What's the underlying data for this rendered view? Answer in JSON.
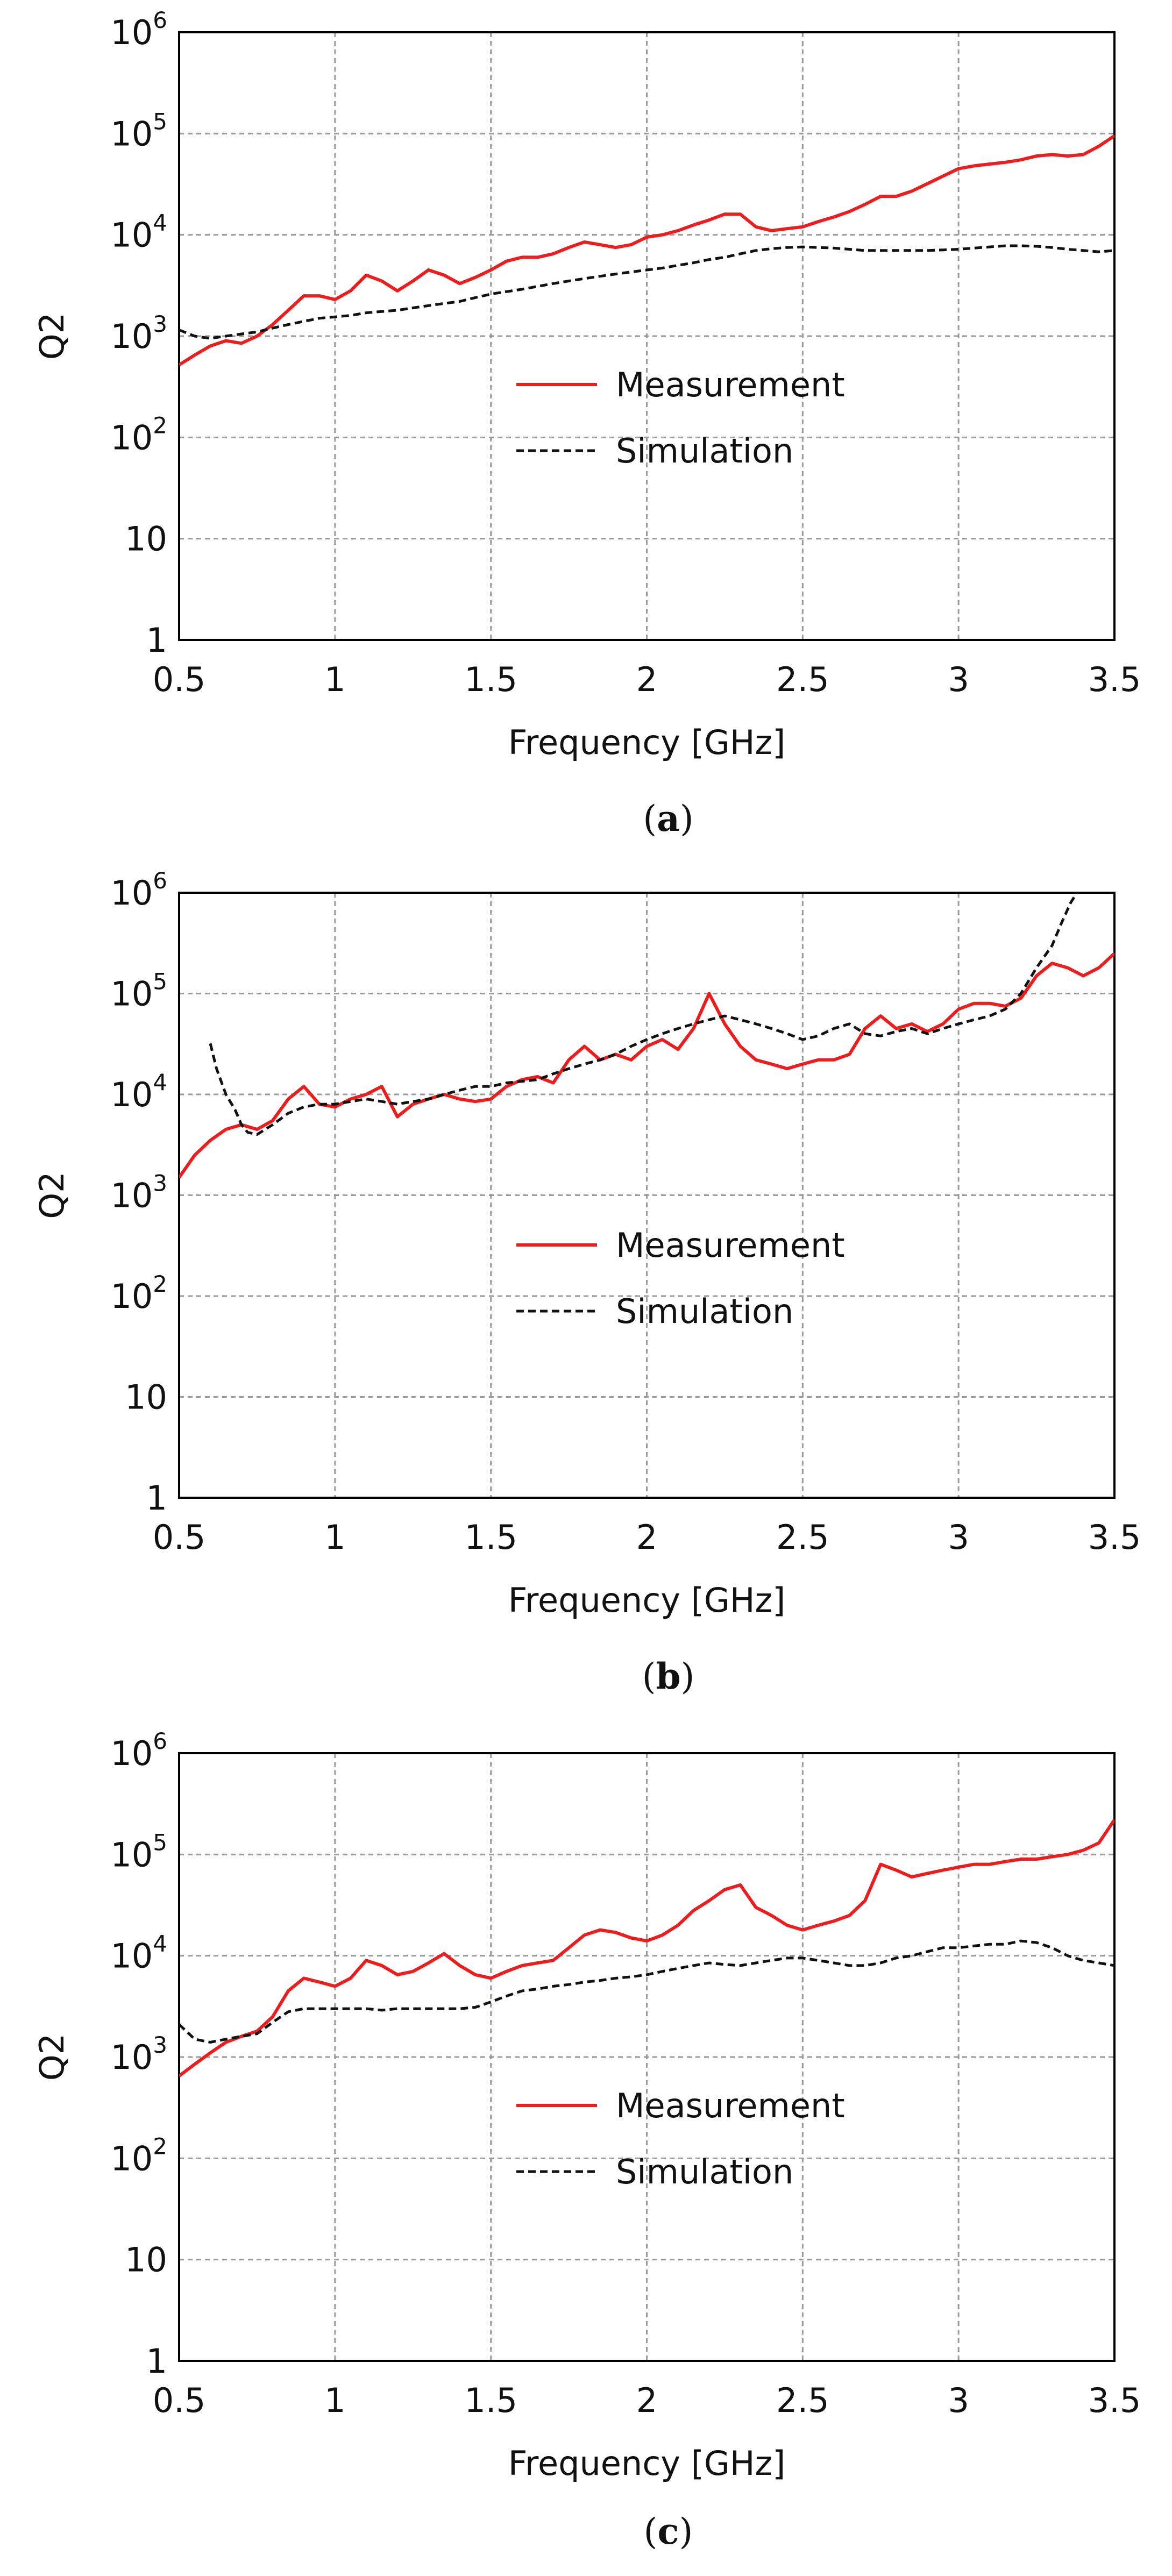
{
  "figure_title": "",
  "chart_data": [
    {
      "type": "line",
      "panel_label": "a",
      "caption_open": "(",
      "caption_close": ")",
      "xlabel": "Frequency [GHz]",
      "ylabel": "Q2",
      "xlim": [
        0.5,
        3.5
      ],
      "ylim": [
        1,
        1000000
      ],
      "yscale": "log",
      "grid": true,
      "legend_position": "center",
      "x_ticks": [
        0.5,
        1,
        1.5,
        2,
        2.5,
        3,
        3.5
      ],
      "x_tick_labels": [
        "0.5",
        "1",
        "1.5",
        "2",
        "2.5",
        "3",
        "3.5"
      ],
      "y_ticks": [
        1,
        10,
        100,
        1000,
        10000,
        100000,
        1000000
      ],
      "y_tick_labels": [
        {
          "base": "1",
          "exp": ""
        },
        {
          "base": "10",
          "exp": ""
        },
        {
          "base": "10",
          "exp": "2"
        },
        {
          "base": "10",
          "exp": "3"
        },
        {
          "base": "10",
          "exp": "4"
        },
        {
          "base": "10",
          "exp": "5"
        },
        {
          "base": "10",
          "exp": "6"
        }
      ],
      "series": [
        {
          "name": "Measurement",
          "color": "#ee1c1c",
          "dash": "solid",
          "x": [
            0.5,
            0.55,
            0.6,
            0.65,
            0.7,
            0.75,
            0.8,
            0.85,
            0.9,
            0.95,
            1.0,
            1.05,
            1.1,
            1.15,
            1.2,
            1.25,
            1.3,
            1.35,
            1.4,
            1.45,
            1.5,
            1.55,
            1.6,
            1.65,
            1.7,
            1.75,
            1.8,
            1.85,
            1.9,
            1.95,
            2.0,
            2.05,
            2.1,
            2.15,
            2.2,
            2.25,
            2.3,
            2.35,
            2.4,
            2.45,
            2.5,
            2.55,
            2.6,
            2.65,
            2.7,
            2.75,
            2.8,
            2.85,
            2.9,
            2.95,
            3.0,
            3.05,
            3.1,
            3.15,
            3.2,
            3.25,
            3.3,
            3.35,
            3.4,
            3.45,
            3.5
          ],
          "y": [
            520,
            650,
            800,
            900,
            850,
            1000,
            1300,
            1800,
            2500,
            2500,
            2300,
            2800,
            4000,
            3500,
            2800,
            3500,
            4500,
            4000,
            3300,
            3800,
            4500,
            5500,
            6000,
            6000,
            6500,
            7500,
            8500,
            8000,
            7500,
            8000,
            9500,
            10000,
            11000,
            12500,
            14000,
            16000,
            16000,
            12000,
            11000,
            11500,
            12000,
            13500,
            15000,
            17000,
            20000,
            24000,
            24000,
            27000,
            32000,
            38000,
            45000,
            48000,
            50000,
            52000,
            55000,
            60000,
            62000,
            60000,
            62000,
            75000,
            95000
          ]
        },
        {
          "name": "Simulation",
          "color": "#111111",
          "dash": "dashed",
          "x": [
            0.5,
            0.55,
            0.6,
            0.65,
            0.7,
            0.75,
            0.8,
            0.85,
            0.9,
            0.95,
            1.0,
            1.05,
            1.1,
            1.15,
            1.2,
            1.25,
            1.3,
            1.35,
            1.4,
            1.45,
            1.5,
            1.55,
            1.6,
            1.65,
            1.7,
            1.75,
            1.8,
            1.85,
            1.9,
            1.95,
            2.0,
            2.05,
            2.1,
            2.15,
            2.2,
            2.25,
            2.3,
            2.35,
            2.4,
            2.45,
            2.5,
            2.55,
            2.6,
            2.65,
            2.7,
            2.75,
            2.8,
            2.85,
            2.9,
            2.95,
            3.0,
            3.05,
            3.1,
            3.15,
            3.2,
            3.25,
            3.3,
            3.35,
            3.4,
            3.45,
            3.5
          ],
          "y": [
            1150,
            1000,
            950,
            1000,
            1050,
            1100,
            1200,
            1300,
            1400,
            1500,
            1550,
            1600,
            1700,
            1750,
            1800,
            1900,
            2000,
            2100,
            2200,
            2400,
            2600,
            2750,
            2900,
            3100,
            3300,
            3500,
            3700,
            3900,
            4100,
            4300,
            4500,
            4700,
            5000,
            5300,
            5700,
            6000,
            6500,
            7000,
            7300,
            7500,
            7600,
            7500,
            7400,
            7200,
            7000,
            7000,
            7000,
            7000,
            7000,
            7100,
            7200,
            7400,
            7600,
            7800,
            7800,
            7700,
            7500,
            7200,
            7000,
            6800,
            7000
          ]
        }
      ]
    },
    {
      "type": "line",
      "panel_label": "b",
      "caption_open": "(",
      "caption_close": ")",
      "xlabel": "Frequency [GHz]",
      "ylabel": "Q2",
      "xlim": [
        0.5,
        3.5
      ],
      "ylim": [
        1,
        1000000
      ],
      "yscale": "log",
      "grid": true,
      "legend_position": "center",
      "x_ticks": [
        0.5,
        1,
        1.5,
        2,
        2.5,
        3,
        3.5
      ],
      "x_tick_labels": [
        "0.5",
        "1",
        "1.5",
        "2",
        "2.5",
        "3",
        "3.5"
      ],
      "y_ticks": [
        1,
        10,
        100,
        1000,
        10000,
        100000,
        1000000
      ],
      "y_tick_labels": [
        {
          "base": "1",
          "exp": ""
        },
        {
          "base": "10",
          "exp": ""
        },
        {
          "base": "10",
          "exp": "2"
        },
        {
          "base": "10",
          "exp": "3"
        },
        {
          "base": "10",
          "exp": "4"
        },
        {
          "base": "10",
          "exp": "5"
        },
        {
          "base": "10",
          "exp": "6"
        }
      ],
      "series": [
        {
          "name": "Measurement",
          "color": "#ee1c1c",
          "dash": "solid",
          "x": [
            0.5,
            0.55,
            0.6,
            0.65,
            0.7,
            0.75,
            0.8,
            0.85,
            0.9,
            0.95,
            1.0,
            1.05,
            1.1,
            1.15,
            1.2,
            1.25,
            1.3,
            1.35,
            1.4,
            1.45,
            1.5,
            1.55,
            1.6,
            1.65,
            1.7,
            1.75,
            1.8,
            1.85,
            1.9,
            1.95,
            2.0,
            2.05,
            2.1,
            2.15,
            2.2,
            2.25,
            2.3,
            2.35,
            2.4,
            2.45,
            2.5,
            2.55,
            2.6,
            2.65,
            2.7,
            2.75,
            2.8,
            2.85,
            2.9,
            2.95,
            3.0,
            3.05,
            3.1,
            3.15,
            3.2,
            3.25,
            3.3,
            3.35,
            3.4,
            3.45,
            3.5
          ],
          "y": [
            1500,
            2500,
            3500,
            4500,
            5000,
            4500,
            5500,
            9000,
            12000,
            8000,
            7500,
            9000,
            10000,
            12000,
            6000,
            8000,
            9000,
            10000,
            9000,
            8500,
            9000,
            12000,
            14000,
            15000,
            13000,
            22000,
            30000,
            22000,
            25000,
            22000,
            30000,
            35000,
            28000,
            45000,
            100000,
            50000,
            30000,
            22000,
            20000,
            18000,
            20000,
            22000,
            22000,
            25000,
            45000,
            60000,
            45000,
            50000,
            42000,
            50000,
            70000,
            80000,
            80000,
            75000,
            90000,
            150000,
            200000,
            180000,
            150000,
            180000,
            250000
          ]
        },
        {
          "name": "Simulation",
          "color": "#111111",
          "dash": "dashed",
          "x": [
            0.6,
            0.62,
            0.65,
            0.68,
            0.7,
            0.72,
            0.75,
            0.8,
            0.85,
            0.9,
            0.95,
            1.0,
            1.05,
            1.1,
            1.15,
            1.2,
            1.25,
            1.3,
            1.35,
            1.4,
            1.45,
            1.5,
            1.55,
            1.6,
            1.65,
            1.7,
            1.75,
            1.8,
            1.85,
            1.9,
            1.95,
            2.0,
            2.05,
            2.1,
            2.15,
            2.2,
            2.25,
            2.3,
            2.35,
            2.4,
            2.45,
            2.5,
            2.55,
            2.6,
            2.65,
            2.7,
            2.75,
            2.8,
            2.85,
            2.9,
            2.95,
            3.0,
            3.05,
            3.1,
            3.15,
            3.2,
            3.25,
            3.3,
            3.33,
            3.36,
            3.38
          ],
          "y": [
            32000,
            18000,
            10000,
            7000,
            5000,
            4200,
            4000,
            5000,
            6500,
            7500,
            8000,
            8000,
            8500,
            9000,
            8500,
            8000,
            8500,
            9000,
            10000,
            11000,
            12000,
            12000,
            13000,
            13500,
            14000,
            16000,
            18000,
            20000,
            22000,
            25000,
            30000,
            35000,
            40000,
            45000,
            50000,
            55000,
            60000,
            55000,
            50000,
            45000,
            40000,
            35000,
            38000,
            45000,
            50000,
            40000,
            38000,
            42000,
            45000,
            40000,
            45000,
            50000,
            55000,
            60000,
            70000,
            100000,
            180000,
            300000,
            500000,
            800000,
            1000000
          ]
        }
      ]
    },
    {
      "type": "line",
      "panel_label": "c",
      "caption_open": "(",
      "caption_close": ")",
      "xlabel": "Frequency [GHz]",
      "ylabel": "Q2",
      "xlim": [
        0.5,
        3.5
      ],
      "ylim": [
        1,
        1000000
      ],
      "yscale": "log",
      "grid": true,
      "legend_position": "center",
      "x_ticks": [
        0.5,
        1,
        1.5,
        2,
        2.5,
        3,
        3.5
      ],
      "x_tick_labels": [
        "0.5",
        "1",
        "1.5",
        "2",
        "2.5",
        "3",
        "3.5"
      ],
      "y_ticks": [
        1,
        10,
        100,
        1000,
        10000,
        100000,
        1000000
      ],
      "y_tick_labels": [
        {
          "base": "1",
          "exp": ""
        },
        {
          "base": "10",
          "exp": ""
        },
        {
          "base": "10",
          "exp": "2"
        },
        {
          "base": "10",
          "exp": "3"
        },
        {
          "base": "10",
          "exp": "4"
        },
        {
          "base": "10",
          "exp": "5"
        },
        {
          "base": "10",
          "exp": "6"
        }
      ],
      "series": [
        {
          "name": "Measurement",
          "color": "#ee1c1c",
          "dash": "solid",
          "x": [
            0.5,
            0.55,
            0.6,
            0.65,
            0.7,
            0.75,
            0.8,
            0.85,
            0.9,
            0.95,
            1.0,
            1.05,
            1.1,
            1.15,
            1.2,
            1.25,
            1.3,
            1.35,
            1.4,
            1.45,
            1.5,
            1.55,
            1.6,
            1.65,
            1.7,
            1.75,
            1.8,
            1.85,
            1.9,
            1.95,
            2.0,
            2.05,
            2.1,
            2.15,
            2.2,
            2.25,
            2.3,
            2.35,
            2.4,
            2.45,
            2.5,
            2.55,
            2.6,
            2.65,
            2.7,
            2.75,
            2.8,
            2.85,
            2.9,
            2.95,
            3.0,
            3.05,
            3.1,
            3.15,
            3.2,
            3.25,
            3.3,
            3.35,
            3.4,
            3.45,
            3.5
          ],
          "y": [
            650,
            850,
            1100,
            1400,
            1600,
            1800,
            2500,
            4500,
            6000,
            5500,
            5000,
            6000,
            9000,
            8000,
            6500,
            7000,
            8500,
            10500,
            8000,
            6500,
            6000,
            7000,
            8000,
            8500,
            9000,
            12000,
            16000,
            18000,
            17000,
            15000,
            14000,
            16000,
            20000,
            28000,
            35000,
            45000,
            50000,
            30000,
            25000,
            20000,
            18000,
            20000,
            22000,
            25000,
            35000,
            80000,
            70000,
            60000,
            65000,
            70000,
            75000,
            80000,
            80000,
            85000,
            90000,
            90000,
            95000,
            100000,
            110000,
            130000,
            220000
          ]
        },
        {
          "name": "Simulation",
          "color": "#111111",
          "dash": "dashed",
          "x": [
            0.5,
            0.55,
            0.6,
            0.65,
            0.7,
            0.75,
            0.8,
            0.85,
            0.9,
            0.95,
            1.0,
            1.05,
            1.1,
            1.15,
            1.2,
            1.25,
            1.3,
            1.35,
            1.4,
            1.45,
            1.5,
            1.55,
            1.6,
            1.65,
            1.7,
            1.75,
            1.8,
            1.85,
            1.9,
            1.95,
            2.0,
            2.05,
            2.1,
            2.15,
            2.2,
            2.25,
            2.3,
            2.35,
            2.4,
            2.45,
            2.5,
            2.55,
            2.6,
            2.65,
            2.7,
            2.75,
            2.8,
            2.85,
            2.9,
            2.95,
            3.0,
            3.05,
            3.1,
            3.15,
            3.2,
            3.25,
            3.3,
            3.35,
            3.4,
            3.45,
            3.5
          ],
          "y": [
            2100,
            1500,
            1400,
            1500,
            1600,
            1700,
            2200,
            2800,
            3000,
            3000,
            3000,
            3000,
            3000,
            2900,
            3000,
            3000,
            3000,
            3000,
            3000,
            3100,
            3500,
            4000,
            4500,
            4700,
            5000,
            5200,
            5500,
            5700,
            6000,
            6200,
            6500,
            7000,
            7500,
            8000,
            8500,
            8200,
            8000,
            8500,
            9000,
            9500,
            9500,
            9000,
            8500,
            8000,
            8000,
            8500,
            9500,
            10000,
            11000,
            12000,
            12000,
            12500,
            13000,
            13000,
            14000,
            13500,
            12000,
            10000,
            9000,
            8500,
            8000
          ]
        }
      ]
    }
  ]
}
